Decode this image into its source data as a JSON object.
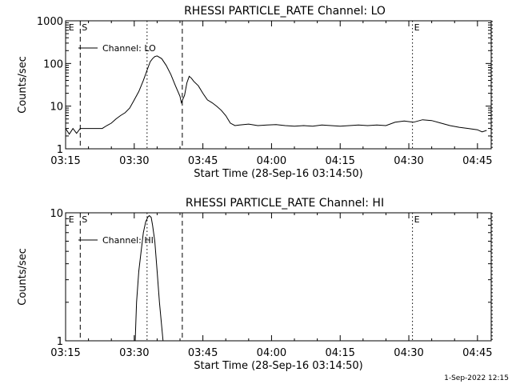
{
  "chart_data": [
    {
      "type": "line",
      "title": "RHESSI PARTICLE_RATE Channel: LO",
      "xlabel": "Start Time (28-Sep-16 03:14:50)",
      "ylabel": "Counts/sec",
      "yscale": "log",
      "xlim": [
        0,
        93
      ],
      "ylim": [
        1,
        1000
      ],
      "xticks": [
        {
          "value": 0,
          "label": "03:15"
        },
        {
          "value": 15,
          "label": "03:30"
        },
        {
          "value": 30,
          "label": "03:45"
        },
        {
          "value": 45,
          "label": "04:00"
        },
        {
          "value": 60,
          "label": "04:15"
        },
        {
          "value": 75,
          "label": "04:30"
        },
        {
          "value": 90,
          "label": "04:45"
        }
      ],
      "yticks": [
        {
          "value": 1,
          "label": "1"
        },
        {
          "value": 10,
          "label": "10"
        },
        {
          "value": 100,
          "label": "100"
        },
        {
          "value": 1000,
          "label": "1000"
        }
      ],
      "legend": "Channel: LO",
      "markers": [
        {
          "x": 0.3,
          "label": "E",
          "style": "none"
        },
        {
          "x": 3.2,
          "label": "S",
          "style": "dashed"
        },
        {
          "x": 17.8,
          "label": "",
          "style": "dotted"
        },
        {
          "x": 25.5,
          "label": "",
          "style": "dashed"
        },
        {
          "x": 75.8,
          "label": "E",
          "style": "dotted"
        },
        {
          "x": 93.2,
          "label": "",
          "style": "dotted"
        }
      ],
      "series": [
        {
          "name": "Channel: LO",
          "x": [
            0,
            0.8,
            1.6,
            2.4,
            3.2,
            4,
            5,
            6,
            7,
            8,
            9,
            10,
            11,
            12,
            13,
            14,
            15,
            16,
            17,
            18,
            18.5,
            19,
            19.5,
            20,
            21,
            22,
            23,
            24,
            25,
            25.3,
            26,
            26.5,
            27,
            27.5,
            28,
            29,
            30,
            31,
            32,
            33,
            34,
            35,
            36,
            37,
            38,
            40,
            42,
            44,
            46,
            48,
            50,
            52,
            54,
            56,
            58,
            60,
            62,
            64,
            66,
            68,
            70,
            72,
            74,
            76,
            78,
            80,
            82,
            84,
            86,
            88,
            90,
            91,
            92
          ],
          "y": [
            3,
            2.2,
            3,
            2.3,
            3,
            3,
            3,
            3,
            3,
            3,
            3.5,
            4,
            5,
            6,
            7,
            9,
            14,
            22,
            40,
            80,
            110,
            130,
            145,
            150,
            130,
            90,
            55,
            30,
            17,
            12,
            18,
            35,
            50,
            45,
            38,
            30,
            20,
            14,
            12,
            10,
            8,
            6,
            4,
            3.5,
            3.6,
            3.8,
            3.5,
            3.6,
            3.7,
            3.5,
            3.4,
            3.5,
            3.4,
            3.6,
            3.5,
            3.4,
            3.5,
            3.6,
            3.5,
            3.6,
            3.5,
            4.2,
            4.5,
            4.2,
            4.8,
            4.6,
            4,
            3.5,
            3.2,
            3,
            2.8,
            2.5,
            2.7
          ]
        }
      ]
    },
    {
      "type": "line",
      "title": "RHESSI PARTICLE_RATE Channel: HI",
      "xlabel": "Start Time (28-Sep-16 03:14:50)",
      "ylabel": "Counts/sec",
      "yscale": "log",
      "xlim": [
        0,
        93
      ],
      "ylim": [
        1,
        10
      ],
      "xticks": [
        {
          "value": 0,
          "label": "03:15"
        },
        {
          "value": 15,
          "label": "03:30"
        },
        {
          "value": 30,
          "label": "03:45"
        },
        {
          "value": 45,
          "label": "04:00"
        },
        {
          "value": 60,
          "label": "04:15"
        },
        {
          "value": 75,
          "label": "04:30"
        },
        {
          "value": 90,
          "label": "04:45"
        }
      ],
      "yticks": [
        {
          "value": 1,
          "label": "1"
        },
        {
          "value": 10,
          "label": "10"
        }
      ],
      "legend": "Channel: HI",
      "markers": [
        {
          "x": 0.3,
          "label": "E",
          "style": "none"
        },
        {
          "x": 3.2,
          "label": "S",
          "style": "dashed"
        },
        {
          "x": 17.8,
          "label": "",
          "style": "dotted"
        },
        {
          "x": 25.5,
          "label": "",
          "style": "dashed"
        },
        {
          "x": 75.8,
          "label": "E",
          "style": "dotted"
        },
        {
          "x": 93.2,
          "label": "",
          "style": "dotted"
        }
      ],
      "series": [
        {
          "name": "Channel: HI",
          "x": [
            15.2,
            15.5,
            16,
            16.5,
            17,
            17.5,
            18,
            18.3,
            18.7,
            19,
            19.5,
            20,
            20.5,
            21,
            21.3
          ],
          "y": [
            1,
            2,
            3.5,
            5,
            7,
            8.5,
            9.3,
            9.5,
            9.2,
            8,
            6,
            3.5,
            2,
            1.3,
            1
          ]
        }
      ]
    }
  ],
  "footer": {
    "timestamp": "1-Sep-2022 12:15"
  }
}
